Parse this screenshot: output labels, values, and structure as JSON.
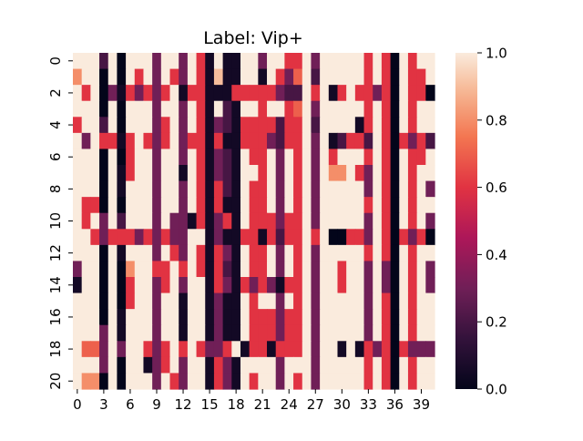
{
  "chart_data": {
    "type": "heatmap",
    "title": "Label: Vip+",
    "xlabel": "",
    "ylabel": "",
    "n_rows": 21,
    "n_cols": 41,
    "x_tick_labels": [
      "0",
      "3",
      "6",
      "9",
      "12",
      "15",
      "18",
      "21",
      "24",
      "27",
      "30",
      "33",
      "36",
      "39"
    ],
    "y_tick_labels": [
      "0",
      "2",
      "4",
      "6",
      "8",
      "10",
      "12",
      "14",
      "16",
      "18",
      "20"
    ],
    "colorbar": {
      "ticks": [
        "0.0",
        "0.2",
        "0.4",
        "0.6",
        "0.8",
        "1.0"
      ],
      "range": [
        0.0,
        1.0
      ],
      "colormap": "rocket"
    },
    "values": [
      [
        1,
        1,
        1,
        0.2,
        1,
        0,
        1,
        1,
        1,
        0.3,
        1,
        1,
        0.3,
        1,
        0.6,
        0.05,
        1,
        0.05,
        0.05,
        1,
        1,
        0.3,
        1,
        1,
        0.6,
        0.6,
        1,
        0.3,
        1,
        1,
        1,
        1,
        1,
        0.6,
        1,
        0.6,
        0,
        1,
        0.6,
        1,
        1
      ],
      [
        0.8,
        1,
        1,
        0,
        1,
        0,
        1,
        0.6,
        1,
        0.3,
        1,
        0.6,
        0.3,
        1,
        0.6,
        0.05,
        0.9,
        0.05,
        0.05,
        1,
        1,
        0.05,
        1,
        0.6,
        0.3,
        0.7,
        1,
        0.2,
        1,
        1,
        1,
        1,
        1,
        0.6,
        1,
        0.6,
        0,
        1,
        0.6,
        0.6,
        1
      ],
      [
        1,
        0.6,
        1,
        0,
        0.3,
        0.05,
        0.6,
        0.3,
        0.6,
        0.3,
        0.6,
        1,
        0.05,
        0.6,
        0.6,
        0.05,
        0.05,
        0.05,
        0.6,
        0.6,
        0.6,
        0.6,
        0.6,
        0.3,
        0.2,
        0.2,
        1,
        0.6,
        1,
        0.05,
        0.6,
        1,
        0.6,
        0.6,
        0.3,
        0.6,
        0,
        1,
        0.6,
        0.6,
        0
      ],
      [
        1,
        1,
        1,
        0,
        1,
        0,
        1,
        1,
        1,
        0.3,
        1,
        1,
        0.3,
        1,
        0.6,
        0.05,
        1,
        0.2,
        0.05,
        1,
        1,
        0.6,
        1,
        1,
        0.6,
        0.7,
        1,
        0.3,
        1,
        1,
        1,
        1,
        1,
        0.6,
        1,
        0.6,
        0,
        1,
        0.6,
        1,
        1
      ],
      [
        0.6,
        1,
        1,
        0.2,
        1,
        0,
        1,
        1,
        1,
        0.3,
        0.6,
        1,
        0.3,
        1,
        0.6,
        0.05,
        0.3,
        0.2,
        0.05,
        0.6,
        0.6,
        0.6,
        0.6,
        0.2,
        0.6,
        0.6,
        1,
        0.2,
        1,
        1,
        1,
        1,
        0.05,
        0.6,
        1,
        0.6,
        0,
        1,
        0.6,
        1,
        1
      ],
      [
        1,
        0.3,
        1,
        0.6,
        0.6,
        0.05,
        0.6,
        1,
        0.6,
        0.3,
        0.6,
        1,
        0.3,
        0.6,
        0.6,
        0.05,
        0.6,
        0.05,
        0.05,
        0.6,
        0.6,
        0.6,
        0.3,
        0.2,
        0.6,
        0.6,
        1,
        0.3,
        1,
        0.05,
        0.2,
        0.6,
        0.6,
        0.2,
        1,
        0.6,
        0,
        0.6,
        0.3,
        0.6,
        0.2
      ],
      [
        1,
        1,
        1,
        0,
        1,
        0,
        0.6,
        1,
        1,
        0.3,
        1,
        1,
        0.3,
        1,
        0.6,
        0.05,
        0.3,
        0.2,
        0.05,
        1,
        0.6,
        0.6,
        1,
        0.3,
        1,
        0.6,
        1,
        0.3,
        1,
        0.6,
        1,
        1,
        1,
        0.6,
        1,
        0.6,
        0,
        1,
        0.6,
        0.6,
        1
      ],
      [
        1,
        1,
        1,
        0,
        1,
        0.05,
        0.6,
        1,
        1,
        0.3,
        1,
        1,
        0.05,
        1,
        0.6,
        0.05,
        0.3,
        0.2,
        0.05,
        1,
        1,
        0.6,
        1,
        0.3,
        1,
        0.6,
        1,
        0.3,
        1,
        0.8,
        0.8,
        1,
        0.6,
        0.3,
        1,
        0.6,
        0,
        1,
        0.6,
        1,
        1
      ],
      [
        1,
        1,
        1,
        0,
        1,
        0.05,
        1,
        1,
        1,
        0.3,
        1,
        1,
        0.3,
        1,
        0.6,
        0.05,
        0.6,
        0.2,
        0.05,
        1,
        0.6,
        0.6,
        1,
        0.3,
        1,
        0.6,
        1,
        0.3,
        1,
        1,
        1,
        1,
        1,
        0.3,
        1,
        0.6,
        0,
        1,
        0.6,
        1,
        0.3
      ],
      [
        1,
        0.6,
        0.6,
        0,
        1,
        0,
        1,
        1,
        1,
        0.3,
        1,
        1,
        0.3,
        1,
        0.6,
        0.05,
        0.6,
        0.05,
        0.05,
        1,
        0.6,
        0.6,
        1,
        0.3,
        1,
        0.6,
        1,
        0.3,
        1,
        1,
        1,
        1,
        1,
        0.6,
        1,
        0.6,
        0,
        1,
        0.6,
        1,
        1
      ],
      [
        1,
        0.6,
        1,
        0.3,
        1,
        0.2,
        1,
        1,
        1,
        0.3,
        1,
        0.3,
        0.3,
        0.05,
        0.6,
        0.05,
        0.3,
        0.6,
        0.05,
        1,
        0.6,
        0.6,
        0.6,
        0.3,
        0.6,
        0.6,
        1,
        0.3,
        1,
        1,
        1,
        1,
        1,
        0.3,
        1,
        0.6,
        0,
        1,
        0.6,
        1,
        0.3
      ],
      [
        1,
        1,
        0.6,
        0.3,
        0.6,
        0.6,
        0.6,
        0.3,
        0.6,
        0.3,
        0.6,
        0.3,
        0.3,
        1,
        1,
        0.05,
        0.3,
        0.05,
        0.05,
        0.6,
        0.6,
        0.05,
        0.6,
        0.2,
        0.6,
        0.6,
        1,
        0.6,
        1,
        0,
        0,
        0.6,
        0.6,
        0.3,
        1,
        0.6,
        0,
        0.6,
        0.3,
        0.6,
        0
      ],
      [
        1,
        1,
        1,
        0,
        1,
        0.05,
        1,
        1,
        1,
        0.3,
        1,
        0.6,
        0.3,
        1,
        0.6,
        0.05,
        0.6,
        0.3,
        0.05,
        1,
        0.6,
        0.6,
        1,
        0.3,
        1,
        0.6,
        1,
        0.3,
        1,
        1,
        1,
        1,
        1,
        0.6,
        1,
        0.6,
        0,
        1,
        0.6,
        1,
        1
      ],
      [
        0.3,
        1,
        1,
        0,
        1,
        0,
        0.8,
        1,
        1,
        0.6,
        0.6,
        1,
        0.6,
        1,
        0.6,
        0.05,
        0.6,
        0.2,
        0.05,
        1,
        0.6,
        0.6,
        1,
        0.3,
        1,
        0.6,
        1,
        0.3,
        1,
        1,
        0.6,
        1,
        1,
        0.3,
        1,
        0.3,
        0,
        1,
        0.6,
        1,
        0.3
      ],
      [
        0.05,
        1,
        1,
        0,
        1,
        0,
        0.6,
        1,
        1,
        0.3,
        0.6,
        1,
        0.3,
        1,
        1,
        0.05,
        0.6,
        0.3,
        0.05,
        0.6,
        0.3,
        0.6,
        0.3,
        0.05,
        0.6,
        0.6,
        1,
        0.3,
        1,
        1,
        0.6,
        1,
        1,
        0.3,
        1,
        0.3,
        0,
        1,
        0.6,
        1,
        0.3
      ],
      [
        1,
        1,
        1,
        0,
        1,
        0,
        0.6,
        1,
        1,
        0.3,
        1,
        1,
        0.05,
        1,
        1,
        0.05,
        0.3,
        0.05,
        0.05,
        1,
        0.6,
        1,
        1,
        0.3,
        1,
        0.6,
        1,
        0.3,
        1,
        1,
        1,
        1,
        1,
        0.3,
        1,
        0.6,
        0,
        1,
        0.6,
        1,
        1
      ],
      [
        1,
        1,
        1,
        0,
        1,
        0.05,
        1,
        1,
        1,
        0.3,
        1,
        1,
        0.05,
        1,
        1,
        0.05,
        0.3,
        0.05,
        0.05,
        1,
        0.6,
        0.6,
        0.6,
        0.3,
        0.6,
        0.6,
        1,
        0.3,
        1,
        1,
        1,
        1,
        1,
        0.3,
        1,
        0.6,
        0,
        1,
        0.6,
        1,
        1
      ],
      [
        1,
        1,
        1,
        0.3,
        1,
        0.05,
        1,
        1,
        1,
        0.3,
        1,
        1,
        0.05,
        1,
        1,
        0.05,
        0.3,
        0.05,
        0.05,
        1,
        0.6,
        0.6,
        0.6,
        0.3,
        0.6,
        0.6,
        1,
        0.3,
        1,
        1,
        1,
        1,
        1,
        0.3,
        1,
        0.6,
        0,
        1,
        0.6,
        1,
        1
      ],
      [
        1,
        0.7,
        0.7,
        0.3,
        1,
        0.3,
        1,
        1,
        0.6,
        0.3,
        0.6,
        1,
        0.6,
        1,
        0.6,
        0.3,
        0.3,
        0.6,
        1,
        0.05,
        0.6,
        0.6,
        0.05,
        0.6,
        0.6,
        0.6,
        1,
        0.3,
        1,
        1,
        0.05,
        1,
        0.05,
        0.6,
        0.3,
        0.6,
        0,
        0.6,
        0.3,
        0.3,
        0.3
      ],
      [
        1,
        1,
        1,
        0.3,
        1,
        0,
        1,
        1,
        0.05,
        0.3,
        0.6,
        1,
        0.3,
        1,
        1,
        0.05,
        0.6,
        0.3,
        0.05,
        1,
        1,
        1,
        1,
        0.3,
        1,
        1,
        1,
        0.3,
        1,
        1,
        1,
        1,
        1,
        0.6,
        1,
        0.6,
        0,
        1,
        0.6,
        1,
        1
      ],
      [
        1,
        0.8,
        0.8,
        0,
        1,
        0,
        1,
        1,
        1,
        0.3,
        1,
        0.6,
        0.3,
        1,
        1,
        0.05,
        0.6,
        0.3,
        0.05,
        1,
        0.6,
        1,
        1,
        0.3,
        1,
        0.6,
        1,
        0.3,
        1,
        1,
        1,
        1,
        1,
        0.6,
        1,
        0.6,
        0,
        1,
        0.6,
        1,
        1
      ]
    ]
  }
}
